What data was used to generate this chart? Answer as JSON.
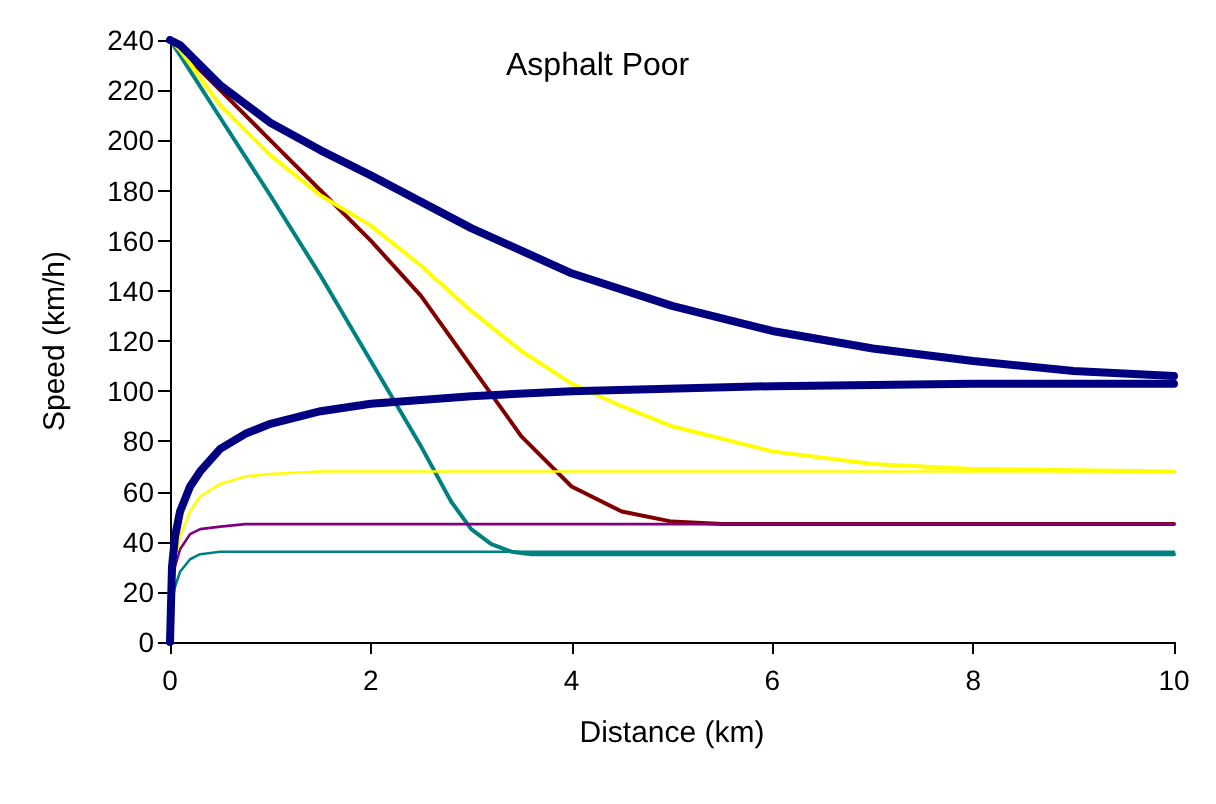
{
  "chart_data": {
    "type": "line",
    "title": "Asphalt Poor",
    "xlabel": "Distance (km)",
    "ylabel": "Speed (km/h)",
    "xlim": [
      0,
      10
    ],
    "xticks": [
      0,
      2,
      4,
      6,
      8,
      10
    ],
    "ylim": [
      0,
      240
    ],
    "yticks": [
      0,
      20,
      40,
      60,
      80,
      100,
      120,
      140,
      160,
      180,
      200,
      220,
      240
    ],
    "grid": false,
    "marker": "none",
    "line_style": "solid",
    "series": [
      {
        "color": "#000080",
        "x": [
          0,
          0.1,
          0.5,
          1,
          1.5,
          2,
          3,
          4,
          5,
          6,
          7,
          8,
          9,
          10
        ],
        "values": [
          240,
          238,
          222,
          207,
          196,
          186,
          165,
          147,
          134,
          124,
          117,
          112,
          108,
          106
        ]
      },
      {
        "color": "#000080",
        "x": [
          0,
          0.02,
          0.05,
          0.1,
          0.2,
          0.3,
          0.5,
          0.75,
          1,
          1.5,
          2,
          3,
          4,
          6,
          8,
          10
        ],
        "values": [
          0,
          30,
          42,
          52,
          62,
          68,
          77,
          83,
          87,
          92,
          95,
          98,
          100,
          102,
          103,
          103
        ]
      },
      {
        "color": "#ffff00",
        "x": [
          0,
          0.1,
          0.5,
          1,
          1.5,
          2,
          2.5,
          3,
          3.5,
          4,
          4.5,
          5,
          6,
          7,
          8,
          10
        ],
        "values": [
          240,
          236,
          214,
          194,
          178,
          166,
          150,
          132,
          116,
          103,
          94,
          86,
          76,
          71,
          69,
          68
        ]
      },
      {
        "color": "#ffff00",
        "x": [
          0,
          0.02,
          0.05,
          0.1,
          0.2,
          0.3,
          0.5,
          0.75,
          1,
          1.5,
          2,
          3,
          10
        ],
        "values": [
          0,
          25,
          33,
          42,
          52,
          58,
          63,
          66,
          67,
          68,
          68,
          68,
          68
        ]
      },
      {
        "color": "#800000",
        "x": [
          0,
          0.1,
          0.5,
          1,
          1.5,
          2,
          2.5,
          3,
          3.5,
          4,
          4.5,
          5,
          5.5,
          6,
          10
        ],
        "values": [
          240,
          236,
          220,
          200,
          180,
          160,
          138,
          110,
          82,
          62,
          52,
          48,
          47,
          47,
          47
        ]
      },
      {
        "color": "#800080",
        "x": [
          0,
          0.02,
          0.05,
          0.1,
          0.2,
          0.3,
          0.5,
          0.75,
          1,
          2,
          10
        ],
        "values": [
          0,
          22,
          30,
          37,
          43,
          45,
          46,
          47,
          47,
          47,
          47
        ]
      },
      {
        "color": "#008080",
        "x": [
          0,
          0.1,
          0.5,
          1,
          1.5,
          2,
          2.5,
          2.8,
          3,
          3.2,
          3.4,
          3.6,
          4,
          10
        ],
        "values": [
          240,
          234,
          209,
          178,
          146,
          112,
          78,
          56,
          45,
          39,
          36,
          35,
          35,
          35
        ]
      },
      {
        "color": "#008080",
        "x": [
          0,
          0.02,
          0.05,
          0.1,
          0.2,
          0.3,
          0.5,
          1,
          10
        ],
        "values": [
          0,
          16,
          22,
          28,
          33,
          35,
          36,
          36,
          36
        ]
      }
    ]
  }
}
